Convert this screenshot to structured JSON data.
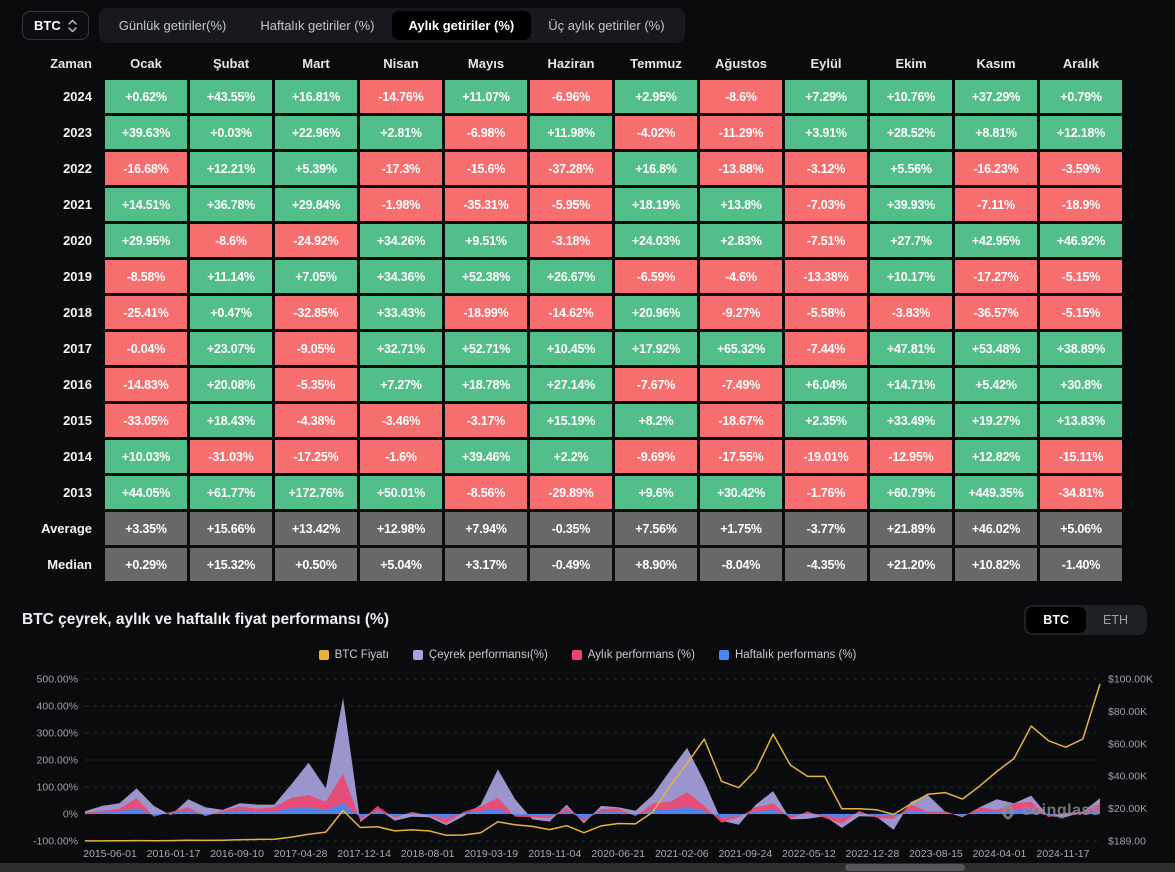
{
  "toolbar": {
    "coin_selector": {
      "value": "BTC"
    },
    "tabs": [
      {
        "label": "Günlük getiriler(%)",
        "active": false
      },
      {
        "label": "Haftalık getiriler (%)",
        "active": false
      },
      {
        "label": "Aylık getiriler (%)",
        "active": true
      },
      {
        "label": "Üç aylık getiriler (%)",
        "active": false
      }
    ]
  },
  "table": {
    "columns": [
      "Zaman",
      "Ocak",
      "Şubat",
      "Mart",
      "Nisan",
      "Mayıs",
      "Haziran",
      "Temmuz",
      "Ağustos",
      "Eylül",
      "Ekim",
      "Kasım",
      "Aralık"
    ],
    "rows": [
      {
        "label": "2024",
        "kind": "year",
        "values": [
          "+0.62%",
          "+43.55%",
          "+16.81%",
          "-14.76%",
          "+11.07%",
          "-6.96%",
          "+2.95%",
          "-8.6%",
          "+7.29%",
          "+10.76%",
          "+37.29%",
          "+0.79%"
        ]
      },
      {
        "label": "2023",
        "kind": "year",
        "values": [
          "+39.63%",
          "+0.03%",
          "+22.96%",
          "+2.81%",
          "-6.98%",
          "+11.98%",
          "-4.02%",
          "-11.29%",
          "+3.91%",
          "+28.52%",
          "+8.81%",
          "+12.18%"
        ]
      },
      {
        "label": "2022",
        "kind": "year",
        "values": [
          "-16.68%",
          "+12.21%",
          "+5.39%",
          "-17.3%",
          "-15.6%",
          "-37.28%",
          "+16.8%",
          "-13.88%",
          "-3.12%",
          "+5.56%",
          "-16.23%",
          "-3.59%"
        ]
      },
      {
        "label": "2021",
        "kind": "year",
        "values": [
          "+14.51%",
          "+36.78%",
          "+29.84%",
          "-1.98%",
          "-35.31%",
          "-5.95%",
          "+18.19%",
          "+13.8%",
          "-7.03%",
          "+39.93%",
          "-7.11%",
          "-18.9%"
        ]
      },
      {
        "label": "2020",
        "kind": "year",
        "values": [
          "+29.95%",
          "-8.6%",
          "-24.92%",
          "+34.26%",
          "+9.51%",
          "-3.18%",
          "+24.03%",
          "+2.83%",
          "-7.51%",
          "+27.7%",
          "+42.95%",
          "+46.92%"
        ]
      },
      {
        "label": "2019",
        "kind": "year",
        "values": [
          "-8.58%",
          "+11.14%",
          "+7.05%",
          "+34.36%",
          "+52.38%",
          "+26.67%",
          "-6.59%",
          "-4.6%",
          "-13.38%",
          "+10.17%",
          "-17.27%",
          "-5.15%"
        ]
      },
      {
        "label": "2018",
        "kind": "year",
        "values": [
          "-25.41%",
          "+0.47%",
          "-32.85%",
          "+33.43%",
          "-18.99%",
          "-14.62%",
          "+20.96%",
          "-9.27%",
          "-5.58%",
          "-3.83%",
          "-36.57%",
          "-5.15%"
        ]
      },
      {
        "label": "2017",
        "kind": "year",
        "values": [
          "-0.04%",
          "+23.07%",
          "-9.05%",
          "+32.71%",
          "+52.71%",
          "+10.45%",
          "+17.92%",
          "+65.32%",
          "-7.44%",
          "+47.81%",
          "+53.48%",
          "+38.89%"
        ]
      },
      {
        "label": "2016",
        "kind": "year",
        "values": [
          "-14.83%",
          "+20.08%",
          "-5.35%",
          "+7.27%",
          "+18.78%",
          "+27.14%",
          "-7.67%",
          "-7.49%",
          "+6.04%",
          "+14.71%",
          "+5.42%",
          "+30.8%"
        ]
      },
      {
        "label": "2015",
        "kind": "year",
        "values": [
          "-33.05%",
          "+18.43%",
          "-4.38%",
          "-3.46%",
          "-3.17%",
          "+15.19%",
          "+8.2%",
          "-18.67%",
          "+2.35%",
          "+33.49%",
          "+19.27%",
          "+13.83%"
        ]
      },
      {
        "label": "2014",
        "kind": "year",
        "values": [
          "+10.03%",
          "-31.03%",
          "-17.25%",
          "-1.6%",
          "+39.46%",
          "+2.2%",
          "-9.69%",
          "-17.55%",
          "-19.01%",
          "-12.95%",
          "+12.82%",
          "-15.11%"
        ]
      },
      {
        "label": "2013",
        "kind": "year",
        "values": [
          "+44.05%",
          "+61.77%",
          "+172.76%",
          "+50.01%",
          "-8.56%",
          "-29.89%",
          "+9.6%",
          "+30.42%",
          "-1.76%",
          "+60.79%",
          "+449.35%",
          "-34.81%"
        ]
      },
      {
        "label": "Average",
        "kind": "stat",
        "values": [
          "+3.35%",
          "+15.66%",
          "+13.42%",
          "+12.98%",
          "+7.94%",
          "-0.35%",
          "+7.56%",
          "+1.75%",
          "-3.77%",
          "+21.89%",
          "+46.02%",
          "+5.06%"
        ]
      },
      {
        "label": "Median",
        "kind": "stat",
        "values": [
          "+0.29%",
          "+15.32%",
          "+0.50%",
          "+5.04%",
          "+3.17%",
          "-0.49%",
          "+8.90%",
          "-8.04%",
          "-4.35%",
          "+21.20%",
          "+10.82%",
          "-1.40%"
        ]
      }
    ]
  },
  "chart_section": {
    "title": "BTC çeyrek, aylık ve haftalık fiyat performansı (%)",
    "toggle": {
      "options": [
        "BTC",
        "ETH"
      ],
      "active": "BTC"
    },
    "watermark": "coinglass"
  },
  "chart_data": {
    "type": "area",
    "title": "BTC çeyrek, aylık ve haftalık fiyat performansı (%)",
    "legend": [
      {
        "name": "BTC Fiyatı",
        "color": "#e6b43d",
        "kind": "line",
        "axis": "right"
      },
      {
        "name": "Çeyrek performansı(%)",
        "color": "#a8a2de",
        "kind": "area",
        "axis": "left"
      },
      {
        "name": "Aylık performans (%)",
        "color": "#f0446e",
        "kind": "area",
        "axis": "left"
      },
      {
        "name": "Haftalık performans (%)",
        "color": "#4a86f2",
        "kind": "area",
        "axis": "left"
      }
    ],
    "x_tick_labels": [
      "2015-06-01",
      "2016-01-17",
      "2016-09-10",
      "2017-04-28",
      "2017-12-14",
      "2018-08-01",
      "2019-03-19",
      "2019-11-04",
      "2020-06-21",
      "2021-02-06",
      "2021-09-24",
      "2022-05-12",
      "2022-12-28",
      "2023-08-15",
      "2024-04-01",
      "2024-11-17"
    ],
    "y_left": {
      "ticks": [
        "500.00%",
        "400.00%",
        "300.00%",
        "200.00%",
        "100.00%",
        "0%",
        "-100.00%"
      ],
      "min": -100,
      "max": 500
    },
    "y_right": {
      "ticks": [
        "$100.00K",
        "$80.00K",
        "$60.00K",
        "$40.00K",
        "$20.00K",
        "$189.00"
      ],
      "min_usd": 189,
      "max_usd": 100000
    },
    "grid": "dashed-horizontal",
    "legend_position": "top-center",
    "series": {
      "btc_price_kusd": [
        0.24,
        0.26,
        0.3,
        0.43,
        0.4,
        0.45,
        0.67,
        0.58,
        0.7,
        0.95,
        1.15,
        1.3,
        2.6,
        4.3,
        5.7,
        19.0,
        8.5,
        9.0,
        6.4,
        7.0,
        6.4,
        3.7,
        3.9,
        5.3,
        12.0,
        10.2,
        9.2,
        7.2,
        9.6,
        5.3,
        9.5,
        11.0,
        10.7,
        18.0,
        34.0,
        48.0,
        63.0,
        37.0,
        33.0,
        44.0,
        66.0,
        47.0,
        40.0,
        40.0,
        20.0,
        20.0,
        19.5,
        16.6,
        23.0,
        29.0,
        30.0,
        26.0,
        34.0,
        43.0,
        51.0,
        71.0,
        62.0,
        58.0,
        63.0,
        97.0
      ],
      "quarterly_pct": [
        10,
        30,
        40,
        95,
        30,
        -5,
        55,
        25,
        15,
        40,
        35,
        35,
        110,
        190,
        95,
        430,
        -30,
        20,
        -25,
        -10,
        -12,
        -42,
        -8,
        35,
        165,
        55,
        -20,
        -28,
        35,
        -35,
        30,
        25,
        12,
        70,
        160,
        245,
        120,
        -25,
        -40,
        35,
        85,
        -20,
        -18,
        -8,
        -52,
        -8,
        -10,
        -58,
        45,
        70,
        8,
        -12,
        25,
        55,
        40,
        68,
        -8,
        -12,
        8,
        58
      ],
      "monthly_pct": [
        5,
        12,
        20,
        58,
        -10,
        8,
        25,
        -8,
        12,
        28,
        20,
        25,
        60,
        70,
        45,
        150,
        -25,
        30,
        -15,
        8,
        -6,
        -35,
        8,
        28,
        60,
        -10,
        -12,
        -16,
        25,
        -28,
        18,
        22,
        -8,
        40,
        45,
        80,
        30,
        -33,
        -12,
        25,
        40,
        -18,
        10,
        -15,
        -36,
        12,
        -14,
        -18,
        35,
        8,
        10,
        -10,
        25,
        15,
        40,
        45,
        -12,
        5,
        10,
        37
      ],
      "weekly_pct": [
        2,
        6,
        10,
        22,
        -6,
        4,
        12,
        -5,
        6,
        14,
        8,
        10,
        22,
        25,
        15,
        40,
        -12,
        12,
        -8,
        5,
        -4,
        -15,
        4,
        12,
        20,
        -6,
        -5,
        -8,
        10,
        -18,
        8,
        9,
        -4,
        15,
        18,
        25,
        12,
        -14,
        -6,
        10,
        15,
        -8,
        5,
        -6,
        -16,
        6,
        -6,
        -8,
        14,
        5,
        4,
        -5,
        10,
        7,
        15,
        18,
        -6,
        3,
        5,
        12
      ]
    }
  },
  "colors": {
    "positive_cell": "#52be89",
    "negative_cell": "#f66e6e",
    "stat_cell": "#686868",
    "background": "#0a0b0d",
    "tab_bar": "#17191e",
    "active_tab": "#000000",
    "price_line": "#e6b43d",
    "quarterly_area": "#a8a2de",
    "monthly_area": "#f0446e",
    "weekly_area": "#4a86f2"
  }
}
